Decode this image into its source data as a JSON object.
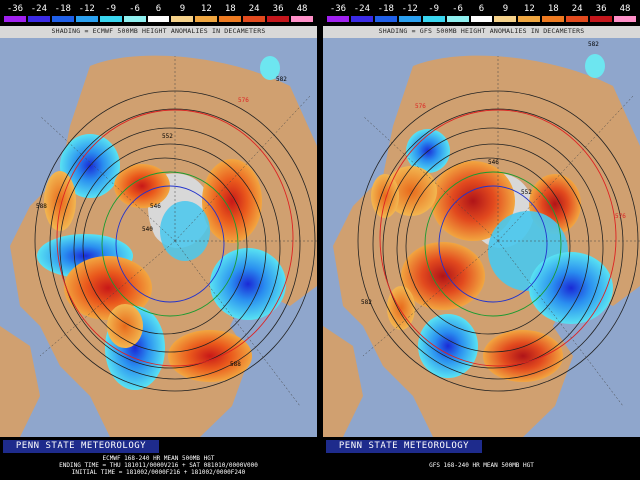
{
  "colorbar": {
    "ticks": [
      "-36",
      "-24",
      "-18",
      "-12",
      "-9",
      "-6",
      "6",
      "9",
      "12",
      "18",
      "24",
      "36",
      "48"
    ],
    "colors": [
      "#a020f0",
      "#3a2ae6",
      "#1f5fe8",
      "#2aa0f0",
      "#39d6f0",
      "#8ff0f0",
      "#ffffff",
      "#f6d28a",
      "#f0a640",
      "#ee7a20",
      "#e24a1e",
      "#c4161c",
      "#ff8fc8"
    ]
  },
  "left": {
    "shading_label": "SHADING = ECMWF 500MB HEIGHT ANOMALIES IN DECAMETERS",
    "branding": "PENN STATE METEOROLOGY",
    "footer_line1": "ECMWF 168-240 HR MEAN 500MB HGT",
    "footer_line2": "ENDING TIME = THU 181011/0000V216 + SAT 081010/0000V000",
    "footer_line3": "INITIAL TIME = 181002/0000F216 + 181002/0000F240",
    "contours": [
      "576",
      "582",
      "588",
      "552",
      "546",
      "540",
      "588"
    ]
  },
  "right": {
    "shading_label": "SHADING = GFS 500MB HEIGHT ANOMALIES IN DECAMETERS",
    "branding": "PENN STATE METEOROLOGY",
    "footer_line1": "GFS 168-240 HR MEAN 500MB HGT",
    "contours": [
      "582",
      "576",
      "546",
      "552",
      "582",
      "576"
    ]
  }
}
